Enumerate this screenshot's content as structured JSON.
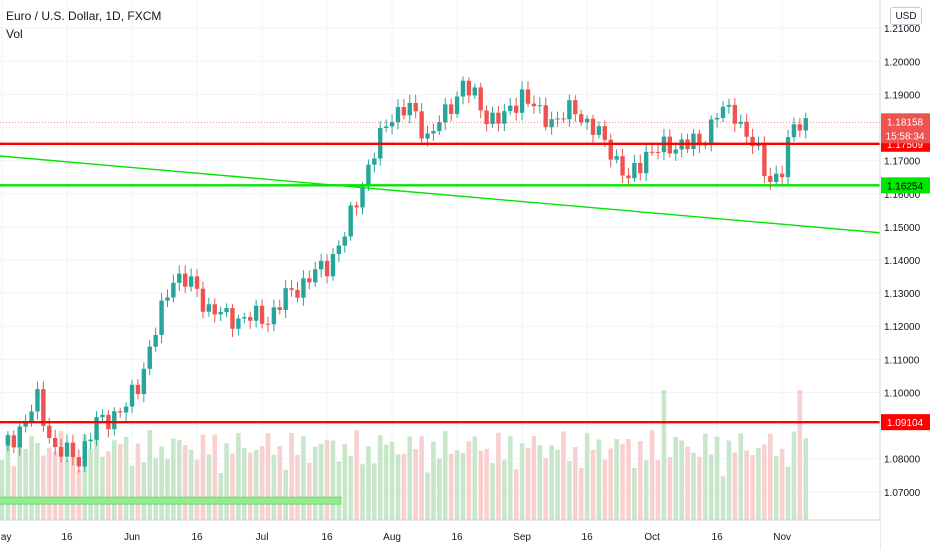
{
  "header": {
    "title": "Euro / U.S. Dollar, 1D, FXCM",
    "indicator": "Vol"
  },
  "currency_button": "USD",
  "colors": {
    "up": "#26a69a",
    "down": "#ef5350",
    "resistance": "#ff0000",
    "support": "#00e600",
    "trendline": "#00e600",
    "volume_up": "#c8e6c9",
    "volume_down": "#f8d0d0"
  },
  "chart_data": {
    "type": "candlestick",
    "instrument": "Euro / U.S. Dollar",
    "timeframe": "1D",
    "source": "FXCM",
    "y_tick_labels": [
      "1.21000",
      "1.20000",
      "1.19000",
      "1.18000",
      "1.17000",
      "1.16000",
      "1.15000",
      "1.14000",
      "1.13000",
      "1.12000",
      "1.11000",
      "1.10000",
      "1.09000",
      "1.08000",
      "1.07000"
    ],
    "y_ticks": [
      1.21,
      1.2,
      1.19,
      1.18,
      1.17,
      1.16,
      1.15,
      1.14,
      1.13,
      1.12,
      1.11,
      1.1,
      1.09,
      1.08,
      1.07
    ],
    "ylim": [
      1.0615,
      1.2185
    ],
    "x_tick_labels": [
      "May",
      "16",
      "Jun",
      "16",
      "Jul",
      "16",
      "Aug",
      "16",
      "Sep",
      "16",
      "Oct",
      "16",
      "Nov"
    ],
    "x_tick_bars": [
      0,
      11,
      22,
      33,
      44,
      55,
      66,
      77,
      88,
      99,
      110,
      121,
      132
    ],
    "bar_count": 137,
    "anchors": [
      [
        0,
        1.0825
      ],
      [
        4,
        1.0915
      ],
      [
        6,
        1.0975
      ],
      [
        9,
        1.0825
      ],
      [
        13,
        1.0805
      ],
      [
        16,
        1.0905
      ],
      [
        19,
        1.0935
      ],
      [
        21,
        1.0955
      ],
      [
        23,
        1.1025
      ],
      [
        26,
        1.1185
      ],
      [
        29,
        1.1355
      ],
      [
        32,
        1.1325
      ],
      [
        35,
        1.1255
      ],
      [
        38,
        1.1225
      ],
      [
        41,
        1.1225
      ],
      [
        45,
        1.1225
      ],
      [
        49,
        1.1305
      ],
      [
        52,
        1.1345
      ],
      [
        55,
        1.1385
      ],
      [
        58,
        1.1475
      ],
      [
        61,
        1.1635
      ],
      [
        64,
        1.1765
      ],
      [
        66,
        1.1845
      ],
      [
        69,
        1.1855
      ],
      [
        72,
        1.1775
      ],
      [
        75,
        1.1835
      ],
      [
        78,
        1.1935
      ],
      [
        82,
        1.1835
      ],
      [
        85,
        1.1825
      ],
      [
        88,
        1.1905
      ],
      [
        91,
        1.1835
      ],
      [
        94,
        1.1825
      ],
      [
        97,
        1.1855
      ],
      [
        100,
        1.1795
      ],
      [
        103,
        1.1735
      ],
      [
        106,
        1.1635
      ],
      [
        109,
        1.1725
      ],
      [
        112,
        1.1735
      ],
      [
        115,
        1.1755
      ],
      [
        118,
        1.1745
      ],
      [
        121,
        1.1845
      ],
      [
        124,
        1.1845
      ],
      [
        127,
        1.1745
      ],
      [
        130,
        1.1645
      ],
      [
        132,
        1.1665
      ],
      [
        133,
        1.1735
      ],
      [
        134,
        1.1815
      ],
      [
        135,
        1.1816
      ]
    ],
    "lines": [
      {
        "kind": "horizontal",
        "value": 1.17509,
        "label": "1.17509",
        "color": "#ff0000"
      },
      {
        "kind": "horizontal",
        "value": 1.16254,
        "label": "1.16254",
        "color": "#00e600"
      },
      {
        "kind": "horizontal",
        "value": 1.09104,
        "label": "1.09104",
        "color": "#ff0000"
      },
      {
        "kind": "trend",
        "from": [
          -1,
          1.1715
        ],
        "to": [
          150,
          1.148
        ],
        "color": "#00e600"
      }
    ],
    "last_price": {
      "value": 1.18158,
      "label": "1.18158",
      "countdown": "15:58:34"
    },
    "annotation_bar": {
      "from_bar": -1,
      "to_bar": 57,
      "value": 1.0675,
      "color": "#90ee90"
    }
  }
}
